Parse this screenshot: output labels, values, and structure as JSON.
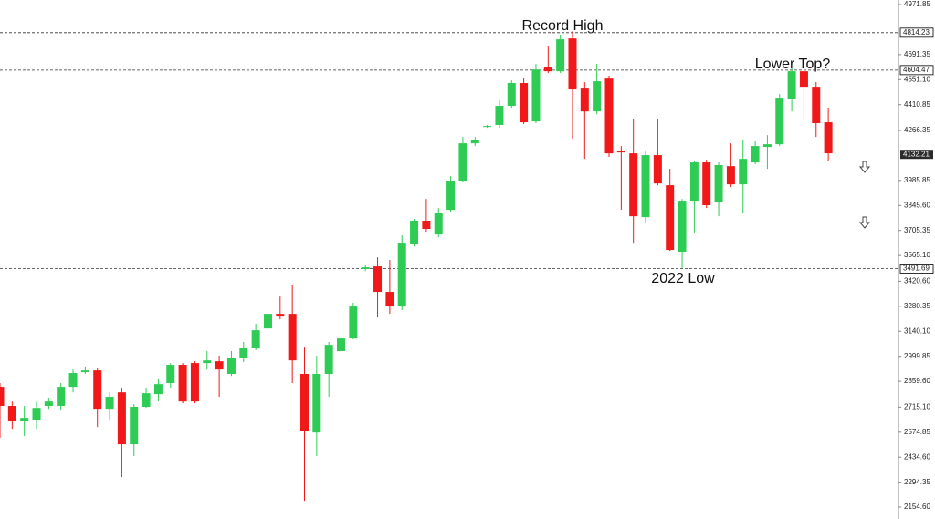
{
  "chart_data": {
    "type": "candlestick",
    "up_color": "#2ecc55",
    "down_color": "#f01818",
    "open": [
      2829,
      2722,
      2635,
      2645,
      2722,
      2722,
      2829,
      2911,
      2921,
      2706,
      2798,
      2507,
      2717,
      2788,
      2850,
      2952,
      2962,
      2962,
      2972,
      2901,
      2988,
      3049,
      3156,
      3238,
      3238,
      2901,
      2573,
      2901,
      3029,
      3100,
      3489,
      3504,
      3361,
      3279,
      3627,
      3760,
      3683,
      3821,
      3985,
      4194,
      4286,
      4297,
      4404,
      4532,
      4317,
      4619,
      4598,
      4782,
      4501,
      4373,
      4557,
      4153,
      4138,
      3780,
      4128,
      3959,
      3586,
      3872,
      4087,
      3862,
      4066,
      3964,
      4087,
      4174,
      4189,
      4445,
      4598,
      4511,
      4312
    ],
    "high": [
      2850,
      2747,
      2722,
      2747,
      2768,
      2850,
      2926,
      2942,
      2936,
      2798,
      2824,
      2732,
      2824,
      2875,
      2962,
      2962,
      2972,
      3029,
      3003,
      3029,
      3080,
      3182,
      3248,
      3335,
      3397,
      3054,
      3003,
      3080,
      3233,
      3300,
      3514,
      3555,
      3540,
      3678,
      3770,
      3882,
      3831,
      4010,
      4230,
      4230,
      4297,
      4435,
      4547,
      4562,
      4639,
      4741,
      4803,
      4823,
      4537,
      4639,
      4573,
      4179,
      4332,
      4153,
      4332,
      4051,
      3882,
      4097,
      4102,
      4087,
      4194,
      4210,
      4205,
      4240,
      4470,
      4614,
      4614,
      4537,
      4394
    ],
    "low": [
      2543,
      2594,
      2553,
      2594,
      2706,
      2696,
      2798,
      2901,
      2604,
      2645,
      2323,
      2441,
      2711,
      2747,
      2824,
      2737,
      2737,
      2926,
      2773,
      2890,
      2967,
      3034,
      3146,
      3207,
      2850,
      2190,
      2441,
      2773,
      2875,
      3095,
      3478,
      3218,
      3238,
      3259,
      3616,
      3698,
      3668,
      3811,
      3974,
      4179,
      4281,
      4281,
      4394,
      4302,
      4307,
      4588,
      4588,
      4220,
      4107,
      4358,
      4118,
      3821,
      3637,
      3744,
      3959,
      3591,
      3494,
      3693,
      3831,
      3785,
      3949,
      3806,
      4077,
      4051,
      4179,
      4373,
      4332,
      4230,
      4097
    ],
    "close": [
      2722,
      2635,
      2655,
      2711,
      2747,
      2829,
      2906,
      2921,
      2706,
      2773,
      2507,
      2717,
      2793,
      2844,
      2952,
      2747,
      2747,
      2977,
      2926,
      2988,
      3049,
      3146,
      3238,
      3228,
      2977,
      2579,
      2901,
      3064,
      3100,
      3279,
      3499,
      3361,
      3279,
      3637,
      3760,
      3714,
      3806,
      3985,
      4194,
      4215,
      4291,
      4404,
      4532,
      4312,
      4608,
      4598,
      4777,
      4496,
      4373,
      4542,
      4138,
      4143,
      3785,
      4128,
      3969,
      3596,
      3872,
      4087,
      3847,
      4072,
      3964,
      4107,
      4179,
      4189,
      4450,
      4598,
      4511,
      4307,
      4138
    ],
    "ylim": [
      2154.6,
      4971.85
    ],
    "yticks": [
      4971.85,
      4691.35,
      {
        "value": 4551.1,
        "label": "4551.10"
      },
      4410.85,
      4266.35,
      3985.85,
      {
        "value": 3845.6,
        "label": "3845.60"
      },
      3705.35,
      {
        "value": 3565.1,
        "label": "3565.10"
      },
      {
        "value": 3420.6,
        "label": "3420.60"
      },
      3280.35,
      {
        "value": 3140.1,
        "label": "3140.10"
      },
      2999.85,
      {
        "value": 2859.6,
        "label": "2859.60"
      },
      {
        "value": 2715.1,
        "label": "2715.10"
      },
      2574.85,
      {
        "value": 2434.6,
        "label": "2434.60"
      },
      2294.35,
      {
        "value": 2154.6,
        "label": "2154.60"
      }
    ],
    "levels": [
      4814.23,
      4604.47,
      3491.69
    ],
    "last_price": 4132.21,
    "annotations": [
      "Record High",
      "Lower Top?",
      "2022 Low"
    ]
  }
}
